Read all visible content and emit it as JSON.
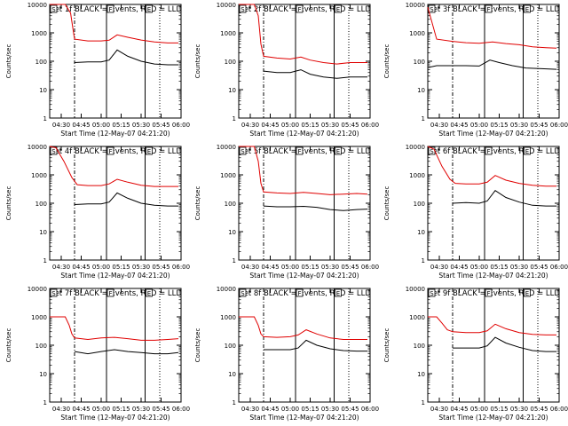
{
  "chart_data": [
    {
      "type": "line",
      "title": "Det 1f BLACK = Events, RED = LLD",
      "xlabel": "Start Time (12-May-07 04:21:20)",
      "ylabel": "Counts/sec",
      "y_scale": "log",
      "ylim": [
        1,
        10000
      ],
      "xlim": [
        "04:21:20",
        "06:00:00"
      ],
      "x_tick_labels": [
        "04:30",
        "04:45",
        "05:00",
        "05:15",
        "05:30",
        "05:45",
        "06:00"
      ],
      "y_tick_labels": [
        "1",
        "10",
        "100",
        "1000",
        "10000"
      ],
      "markers": [
        {
          "time": "04:40",
          "style": "dash-dot"
        },
        {
          "time": "05:04",
          "style": "solid",
          "label": "F"
        },
        {
          "time": "05:33",
          "style": "solid",
          "label": "E"
        },
        {
          "time": "05:44",
          "style": "dotted"
        }
      ],
      "corner_label": "S",
      "series": [
        {
          "color": "#e00000",
          "x": [
            "04:21:20",
            "04:33",
            "04:37",
            "04:39",
            "04:40",
            "04:50",
            "05:00",
            "05:06",
            "05:12",
            "05:20",
            "05:30",
            "05:40",
            "05:50",
            "05:58"
          ],
          "y": [
            10000,
            10000,
            5000,
            1200,
            600,
            520,
            520,
            550,
            850,
            700,
            560,
            480,
            440,
            440
          ]
        },
        {
          "color": "#000000",
          "x": [
            "04:40",
            "04:50",
            "05:00",
            "05:06",
            "05:12",
            "05:20",
            "05:30",
            "05:40",
            "05:50",
            "05:58"
          ],
          "y": [
            90,
            95,
            95,
            110,
            250,
            150,
            100,
            80,
            75,
            75
          ]
        }
      ]
    },
    {
      "type": "line",
      "title": "Det 2f BLACK = Events, RED = LLD",
      "xlabel": "Start Time (12-May-07 04:21:20)",
      "ylabel": "Counts/sec",
      "y_scale": "log",
      "ylim": [
        1,
        10000
      ],
      "xlim": [
        "04:21:20",
        "06:00:00"
      ],
      "x_tick_labels": [
        "04:30",
        "04:45",
        "05:00",
        "05:15",
        "05:30",
        "05:45",
        "06:00"
      ],
      "y_tick_labels": [
        "1",
        "10",
        "100",
        "1000",
        "10000"
      ],
      "markers": [
        {
          "time": "04:40",
          "style": "dash-dot"
        },
        {
          "time": "05:04",
          "style": "solid",
          "label": "F"
        },
        {
          "time": "05:33",
          "style": "solid",
          "label": "E"
        },
        {
          "time": "05:44",
          "style": "dotted"
        }
      ],
      "corner_label": "S",
      "series": [
        {
          "color": "#e00000",
          "x": [
            "04:21:20",
            "04:33",
            "04:36",
            "04:38",
            "04:40",
            "04:50",
            "05:00",
            "05:08",
            "05:15",
            "05:25",
            "05:35",
            "05:45",
            "05:58"
          ],
          "y": [
            10000,
            10000,
            4000,
            400,
            150,
            130,
            120,
            140,
            110,
            90,
            80,
            90,
            90
          ]
        },
        {
          "color": "#000000",
          "x": [
            "04:40",
            "04:50",
            "05:00",
            "05:08",
            "05:15",
            "05:25",
            "05:35",
            "05:45",
            "05:58"
          ],
          "y": [
            45,
            40,
            40,
            50,
            35,
            28,
            25,
            28,
            28
          ]
        }
      ]
    },
    {
      "type": "line",
      "title": "Det 3f BLACK = Events, RED = LLD",
      "xlabel": "Start Time (12-May-07 04:21:20)",
      "ylabel": "Counts/sec",
      "y_scale": "log",
      "ylim": [
        1,
        10000
      ],
      "xlim": [
        "04:21:20",
        "06:00:00"
      ],
      "x_tick_labels": [
        "04:30",
        "04:45",
        "05:00",
        "05:15",
        "05:30",
        "05:45",
        "06:00"
      ],
      "y_tick_labels": [
        "1",
        "10",
        "100",
        "1000",
        "10000"
      ],
      "markers": [
        {
          "time": "04:40",
          "style": "dash-dot"
        },
        {
          "time": "05:04",
          "style": "solid",
          "label": "F"
        },
        {
          "time": "05:33",
          "style": "solid",
          "label": "E"
        },
        {
          "time": "05:44",
          "style": "dotted"
        }
      ],
      "corner_label": "S",
      "series": [
        {
          "color": "#e00000",
          "x": [
            "04:21:20",
            "04:28",
            "04:40",
            "04:50",
            "05:00",
            "05:10",
            "05:20",
            "05:30",
            "05:40",
            "05:50",
            "05:58"
          ],
          "y": [
            8000,
            600,
            500,
            450,
            430,
            480,
            420,
            380,
            320,
            300,
            290
          ]
        },
        {
          "color": "#000000",
          "x": [
            "04:21:20",
            "04:28",
            "04:40",
            "04:50",
            "05:00",
            "05:08",
            "05:15",
            "05:25",
            "05:35",
            "05:45",
            "05:58"
          ],
          "y": [
            60,
            70,
            70,
            70,
            68,
            110,
            90,
            70,
            58,
            55,
            52
          ]
        }
      ]
    },
    {
      "type": "line",
      "title": "Det 4f BLACK = Events, RED = LLD",
      "xlabel": "Start Time (12-May-07 04:21:20)",
      "ylabel": "Counts/sec",
      "y_scale": "log",
      "ylim": [
        1,
        10000
      ],
      "xlim": [
        "04:21:20",
        "06:00:00"
      ],
      "x_tick_labels": [
        "04:30",
        "04:45",
        "05:00",
        "05:15",
        "05:30",
        "05:45",
        "06:00"
      ],
      "y_tick_labels": [
        "1",
        "10",
        "100",
        "1000",
        "10000"
      ],
      "markers": [
        {
          "time": "04:40",
          "style": "dash-dot"
        },
        {
          "time": "05:04",
          "style": "solid",
          "label": "F"
        },
        {
          "time": "05:33",
          "style": "solid",
          "label": "E"
        },
        {
          "time": "05:44",
          "style": "dotted"
        }
      ],
      "corner_label": "S",
      "series": [
        {
          "color": "#e00000",
          "x": [
            "04:21:20",
            "04:26",
            "04:32",
            "04:38",
            "04:42",
            "04:50",
            "05:00",
            "05:06",
            "05:12",
            "05:20",
            "05:30",
            "05:40",
            "05:50",
            "05:58"
          ],
          "y": [
            10000,
            9000,
            3000,
            800,
            450,
            420,
            420,
            480,
            700,
            550,
            430,
            390,
            390,
            390
          ]
        },
        {
          "color": "#000000",
          "x": [
            "04:40",
            "04:50",
            "05:00",
            "05:06",
            "05:12",
            "05:20",
            "05:30",
            "05:40",
            "05:50",
            "05:58"
          ],
          "y": [
            90,
            95,
            95,
            110,
            230,
            150,
            100,
            85,
            80,
            80
          ]
        }
      ]
    },
    {
      "type": "line",
      "title": "Det 5f BLACK = Events, RED = LLD",
      "xlabel": "Start Time (12-May-07 04:21:20)",
      "ylabel": "Counts/sec",
      "y_scale": "log",
      "ylim": [
        1,
        10000
      ],
      "xlim": [
        "04:21:20",
        "06:00:00"
      ],
      "x_tick_labels": [
        "04:30",
        "04:45",
        "05:00",
        "05:15",
        "05:30",
        "05:45",
        "06:00"
      ],
      "y_tick_labels": [
        "1",
        "10",
        "100",
        "1000",
        "10000"
      ],
      "markers": [
        {
          "time": "04:40",
          "style": "dash-dot"
        },
        {
          "time": "05:04",
          "style": "solid",
          "label": "F"
        },
        {
          "time": "05:33",
          "style": "solid",
          "label": "E"
        },
        {
          "time": "05:44",
          "style": "dotted"
        }
      ],
      "corner_label": "S",
      "series": [
        {
          "color": "#e00000",
          "x": [
            "04:21:20",
            "04:33",
            "04:36",
            "04:38",
            "04:40",
            "04:50",
            "05:00",
            "05:10",
            "05:20",
            "05:30",
            "05:40",
            "05:50",
            "05:58"
          ],
          "y": [
            10000,
            10000,
            3000,
            500,
            250,
            230,
            220,
            240,
            220,
            200,
            210,
            220,
            210
          ]
        },
        {
          "color": "#000000",
          "x": [
            "04:40",
            "04:50",
            "05:00",
            "05:10",
            "05:20",
            "05:30",
            "05:40",
            "05:50",
            "05:58"
          ],
          "y": [
            80,
            75,
            75,
            78,
            72,
            60,
            55,
            60,
            62
          ]
        }
      ]
    },
    {
      "type": "line",
      "title": "Det 6f BLACK = Events, RED = LLD",
      "xlabel": "Start Time (12-May-07 04:21:20)",
      "ylabel": "Counts/sec",
      "y_scale": "log",
      "ylim": [
        1,
        10000
      ],
      "xlim": [
        "04:21:20",
        "06:00:00"
      ],
      "x_tick_labels": [
        "04:30",
        "04:45",
        "05:00",
        "05:15",
        "05:30",
        "05:45",
        "06:00"
      ],
      "y_tick_labels": [
        "1",
        "10",
        "100",
        "1000",
        "10000"
      ],
      "markers": [
        {
          "time": "04:40",
          "style": "dash-dot"
        },
        {
          "time": "05:04",
          "style": "solid",
          "label": "F"
        },
        {
          "time": "05:33",
          "style": "solid",
          "label": "E"
        },
        {
          "time": "05:44",
          "style": "dotted"
        }
      ],
      "corner_label": "S",
      "series": [
        {
          "color": "#e00000",
          "x": [
            "04:21:20",
            "04:26",
            "04:32",
            "04:38",
            "04:42",
            "04:50",
            "05:00",
            "05:06",
            "05:12",
            "05:20",
            "05:30",
            "05:40",
            "05:50",
            "05:58"
          ],
          "y": [
            10000,
            8000,
            2000,
            700,
            500,
            480,
            480,
            550,
            950,
            650,
            500,
            430,
            400,
            400
          ]
        },
        {
          "color": "#000000",
          "x": [
            "04:40",
            "04:50",
            "05:00",
            "05:06",
            "05:12",
            "05:20",
            "05:30",
            "05:40",
            "05:50",
            "05:58"
          ],
          "y": [
            100,
            105,
            100,
            120,
            280,
            160,
            110,
            85,
            80,
            80
          ]
        }
      ]
    },
    {
      "type": "line",
      "title": "Det 7f BLACK = Events, RED = LLD",
      "xlabel": "Start Time (12-May-07 04:21:20)",
      "ylabel": "Counts/sec",
      "y_scale": "log",
      "ylim": [
        1,
        10000
      ],
      "xlim": [
        "04:21:20",
        "06:00:00"
      ],
      "x_tick_labels": [
        "04:30",
        "04:45",
        "05:00",
        "05:15",
        "05:30",
        "05:45",
        "06:00"
      ],
      "y_tick_labels": [
        "1",
        "10",
        "100",
        "1000",
        "10000"
      ],
      "markers": [
        {
          "time": "04:40",
          "style": "dash-dot"
        },
        {
          "time": "05:04",
          "style": "solid",
          "label": "F"
        },
        {
          "time": "05:33",
          "style": "solid",
          "label": "E"
        },
        {
          "time": "05:44",
          "style": "dotted"
        }
      ],
      "corner_label": "S",
      "series": [
        {
          "color": "#e00000",
          "x": [
            "04:21:20",
            "04:33",
            "04:36",
            "04:38",
            "04:40",
            "04:50",
            "05:00",
            "05:10",
            "05:20",
            "05:30",
            "05:40",
            "05:50",
            "05:58"
          ],
          "y": [
            1000,
            1000,
            500,
            250,
            180,
            160,
            180,
            190,
            170,
            150,
            150,
            160,
            170
          ]
        },
        {
          "color": "#000000",
          "x": [
            "04:40",
            "04:50",
            "05:00",
            "05:10",
            "05:20",
            "05:30",
            "05:40",
            "05:50",
            "05:58"
          ],
          "y": [
            60,
            50,
            60,
            70,
            60,
            55,
            50,
            50,
            55
          ]
        }
      ]
    },
    {
      "type": "line",
      "title": "Det 8f BLACK = Events, RED = LLD",
      "xlabel": "Start Time (12-May-07 04:21:20)",
      "ylabel": "Counts/sec",
      "y_scale": "log",
      "ylim": [
        1,
        10000
      ],
      "xlim": [
        "04:21:20",
        "06:00:00"
      ],
      "x_tick_labels": [
        "04:30",
        "04:45",
        "05:00",
        "05:15",
        "05:30",
        "05:45",
        "06:00"
      ],
      "y_tick_labels": [
        "1",
        "10",
        "100",
        "1000",
        "10000"
      ],
      "markers": [
        {
          "time": "04:40",
          "style": "dash-dot"
        },
        {
          "time": "05:04",
          "style": "solid",
          "label": "F"
        },
        {
          "time": "05:33",
          "style": "solid",
          "label": "E"
        },
        {
          "time": "05:44",
          "style": "dotted"
        }
      ],
      "corner_label": "S",
      "series": [
        {
          "color": "#e00000",
          "x": [
            "04:21:20",
            "04:33",
            "04:36",
            "04:38",
            "04:40",
            "04:50",
            "05:00",
            "05:06",
            "05:12",
            "05:20",
            "05:30",
            "05:40",
            "05:50",
            "05:58"
          ],
          "y": [
            1000,
            1000,
            500,
            250,
            200,
            190,
            200,
            230,
            350,
            250,
            180,
            160,
            160,
            160
          ]
        },
        {
          "color": "#000000",
          "x": [
            "04:40",
            "04:50",
            "05:00",
            "05:06",
            "05:12",
            "05:20",
            "05:30",
            "05:40",
            "05:50",
            "05:58"
          ],
          "y": [
            70,
            70,
            70,
            80,
            150,
            100,
            75,
            65,
            62,
            62
          ]
        }
      ]
    },
    {
      "type": "line",
      "title": "Det 9f BLACK = Events, RED = LLD",
      "xlabel": "Start Time (12-May-07 04:21:20)",
      "ylabel": "Counts/sec",
      "y_scale": "log",
      "ylim": [
        1,
        10000
      ],
      "xlim": [
        "04:21:20",
        "06:00:00"
      ],
      "x_tick_labels": [
        "04:30",
        "04:45",
        "05:00",
        "05:15",
        "05:30",
        "05:45",
        "06:00"
      ],
      "y_tick_labels": [
        "1",
        "10",
        "100",
        "1000",
        "10000"
      ],
      "markers": [
        {
          "time": "04:40",
          "style": "dash-dot"
        },
        {
          "time": "05:04",
          "style": "solid",
          "label": "F"
        },
        {
          "time": "05:33",
          "style": "solid",
          "label": "E"
        },
        {
          "time": "05:44",
          "style": "dotted"
        }
      ],
      "corner_label": "S",
      "series": [
        {
          "color": "#e00000",
          "x": [
            "04:21:20",
            "04:28",
            "04:32",
            "04:36",
            "04:40",
            "04:50",
            "05:00",
            "05:06",
            "05:12",
            "05:20",
            "05:30",
            "05:40",
            "05:50",
            "05:58"
          ],
          "y": [
            1000,
            1000,
            600,
            350,
            300,
            280,
            280,
            320,
            550,
            380,
            280,
            240,
            230,
            230
          ]
        },
        {
          "color": "#000000",
          "x": [
            "04:40",
            "04:50",
            "05:00",
            "05:06",
            "05:12",
            "05:20",
            "05:30",
            "05:40",
            "05:50",
            "05:58"
          ],
          "y": [
            80,
            80,
            80,
            95,
            190,
            120,
            85,
            65,
            60,
            60
          ]
        }
      ]
    }
  ]
}
